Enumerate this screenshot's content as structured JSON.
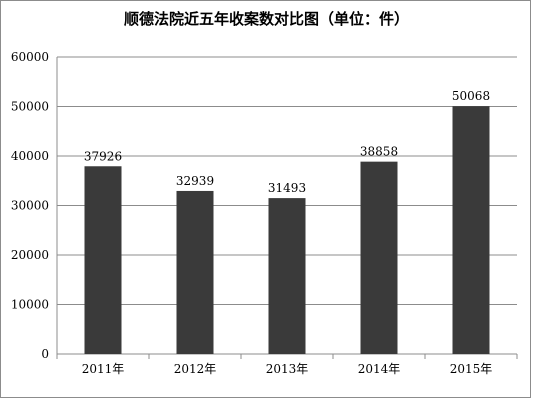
{
  "chart_data": {
    "type": "bar",
    "title": "顺德法院近五年收案数对比图（单位：件）",
    "categories": [
      "2011年",
      "2012年",
      "2013年",
      "2014年",
      "2015年"
    ],
    "values": [
      37926,
      32939,
      31493,
      38858,
      50068
    ],
    "data_labels": [
      "37926",
      "32939",
      "31493",
      "38858",
      "50068"
    ],
    "y_ticks": [
      "0",
      "10000",
      "20000",
      "30000",
      "40000",
      "50000",
      "60000"
    ],
    "ylim": [
      0,
      60000
    ],
    "grid": true,
    "legend": "none",
    "bar_color": "#3a3a3a",
    "grid_color": "#8c8c8c"
  }
}
